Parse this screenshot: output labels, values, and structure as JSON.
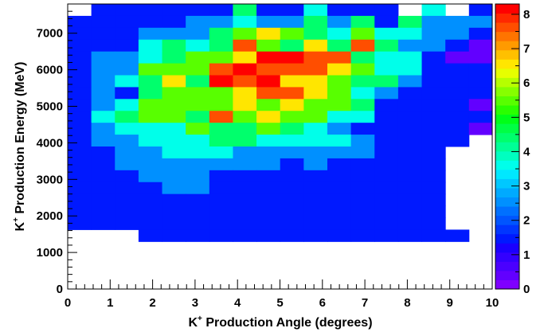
{
  "chart_data": {
    "type": "heatmap",
    "title": "",
    "xlabel": {
      "prefix": "K",
      "sup": "+",
      "rest": " Production Angle (degrees)"
    },
    "ylabel": {
      "prefix": "K",
      "sup": "+",
      "rest": " Production Energy (MeV)"
    },
    "xlim": [
      0,
      10
    ],
    "ylim": [
      0,
      7800
    ],
    "xticks": [
      0,
      1,
      2,
      3,
      4,
      5,
      6,
      7,
      8,
      9,
      10
    ],
    "yticks": [
      0,
      1000,
      2000,
      3000,
      4000,
      5000,
      6000,
      7000
    ],
    "x_bin_width": 0.556,
    "y_bin_width": 325,
    "y_start": 1300,
    "zlim": [
      0,
      8.3
    ],
    "zticks": [
      0,
      1,
      2,
      3,
      4,
      5,
      6,
      7,
      8
    ],
    "grid": false,
    "colorbar": "right",
    "palette": [
      "#7f00ff",
      "#6200ff",
      "#4a00ff",
      "#3300ff",
      "#1a00ff",
      "#0019ff",
      "#0036ff",
      "#0055ff",
      "#0070ff",
      "#0090ff",
      "#00aaff",
      "#00c8ff",
      "#00e8ff",
      "#00ffea",
      "#00ffc0",
      "#00ff96",
      "#00ff6c",
      "#00ff44",
      "#00ff18",
      "#2aff00",
      "#58ff00",
      "#86ff00",
      "#b6ff00",
      "#e6ff00",
      "#ffe600",
      "#ffc000",
      "#ff9a00",
      "#ff7400",
      "#ff4e00",
      "#ff2800",
      "#ff0000"
    ],
    "rows": [
      "...3.1111...31..1..",
      ".1111114113111.3.1.",
      "1111122322424142222",
      "1112224565435332211",
      "1113434754647422101",
      "1223455688774331000",
      "1225557877765331111",
      "1234648786654421111",
      "1214555677653211110",
      "1235555656554111101",
      "1345547565533111110",
      "123335445432111110.",
      "12233344333321111..",
      "1122333222222111...",
      "1122222221211111...",
      "1112221111111111...",
      "1111221111111111...",
      "1111111111111111...",
      "1111111111111111...",
      "1111111111111111...",
      "...11111111111111.."
    ]
  }
}
